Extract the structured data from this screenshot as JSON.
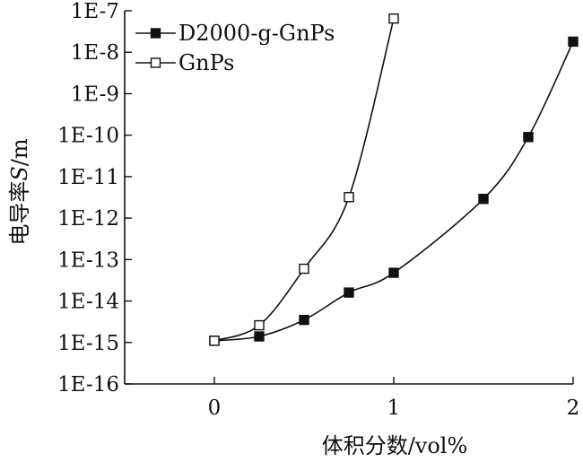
{
  "chart_data": {
    "type": "line",
    "xlabel": "体积分数/vol%",
    "ylabel": "电导率S/m",
    "ylabel_parts": [
      "电导率",
      "S",
      "/m"
    ],
    "xlim": [
      -0.5,
      2.0
    ],
    "x_ticks": [
      0,
      1,
      2
    ],
    "x_tick_labels": [
      "0",
      "1",
      "2"
    ],
    "y_scale": "log",
    "ylim": [
      1e-16,
      1e-07
    ],
    "y_ticks": [
      1e-16,
      1e-15,
      1e-14,
      1e-13,
      1e-12,
      1e-11,
      1e-10,
      1e-09,
      1e-08,
      1e-07
    ],
    "y_tick_labels": [
      "1E-16",
      "1E-15",
      "1E-14",
      "1E-13",
      "1E-12",
      "1E-11",
      "1E-10",
      "1E-9",
      "1E-8",
      "1E-7"
    ],
    "grid": false,
    "legend_position": "top-left",
    "series": [
      {
        "name": "D2000-g-GnPs",
        "marker": "filled-square",
        "color": "#111111",
        "x": [
          0,
          0.25,
          0.5,
          0.75,
          1.0,
          1.5,
          1.75,
          2.0
        ],
        "y": [
          1.1e-15,
          1.4e-15,
          3.5e-15,
          1.6e-14,
          4.8e-14,
          2.9e-12,
          9e-11,
          1.8e-08
        ]
      },
      {
        "name": "GnPs",
        "marker": "open-square",
        "color": "#111111",
        "x": [
          0,
          0.25,
          0.5,
          0.75,
          1.0
        ],
        "y": [
          1.1e-15,
          2.6e-15,
          6e-14,
          3.2e-12,
          6.5e-08
        ]
      }
    ]
  }
}
